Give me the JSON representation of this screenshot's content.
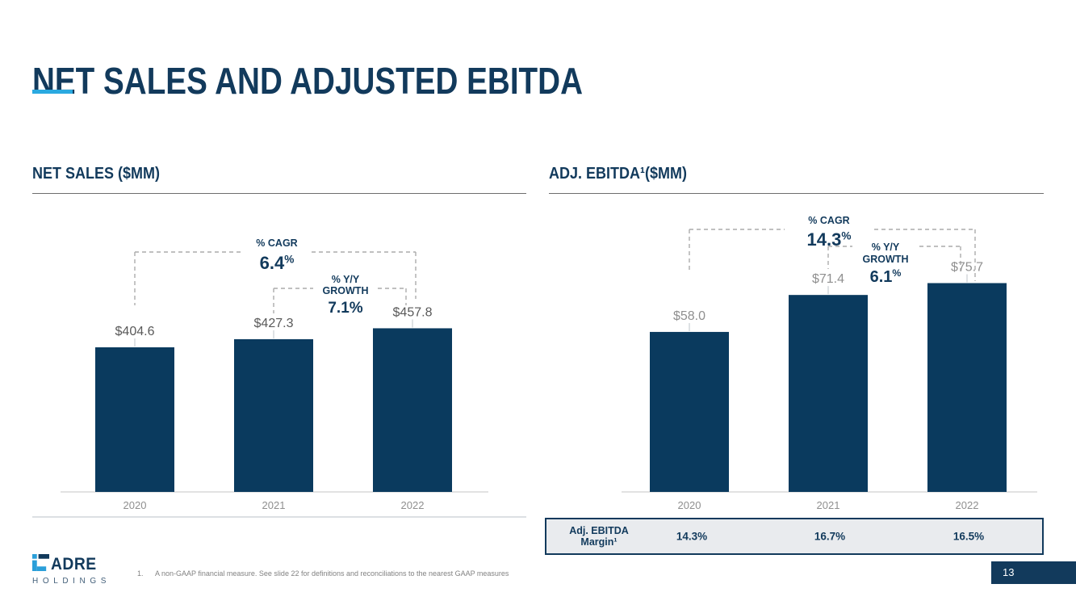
{
  "slide": {
    "title": "NET SALES AND ADJUSTED EBITDA",
    "page_number": "13",
    "footnote": {
      "index": "1.",
      "text": "A non-GAAP financial measure. See slide 22 for definitions and reconciliations to the nearest GAAP measures"
    },
    "logo": {
      "wordmark": "ADRE",
      "subtext": "HOLDINGS"
    },
    "colors": {
      "navy": "#123A5C",
      "accent_blue": "#2AA9E0",
      "bar_fill": "#0A3A5E",
      "dashed_line": "#ACACAC",
      "axis_line": "#D9D9D9"
    }
  },
  "panels": {
    "left": {
      "header": "NET SALES ($MM)"
    },
    "right": {
      "header": "ADJ. EBITDA¹($MM)"
    }
  },
  "margin_table": {
    "label_line1": "Adj. EBITDA",
    "label_line2": "Margin¹",
    "values": [
      "14.3%",
      "16.7%",
      "16.5%"
    ]
  },
  "chart_data": [
    {
      "type": "bar",
      "title": "NET SALES ($MM)",
      "categories": [
        "2020",
        "2021",
        "2022"
      ],
      "values": [
        404.6,
        427.3,
        457.8
      ],
      "value_labels": [
        "$404.6",
        "$427.3",
        "$457.8"
      ],
      "value_label_color": "#595959",
      "category_label_color": "#8F8F8F",
      "bar_color": "#0A3A5E",
      "ylim": [
        0,
        500
      ],
      "grid": false,
      "annotations": [
        {
          "kind": "cagr",
          "label_lines": [
            "% CAGR"
          ],
          "value": "6.4",
          "suffix": "%",
          "suffix_superscript": true,
          "from": "2020",
          "to": "2022"
        },
        {
          "kind": "yoy_growth",
          "label_lines": [
            "% Y/Y",
            "GROWTH"
          ],
          "value": "7.1%",
          "suffix": "",
          "suffix_superscript": false,
          "from": "2021",
          "to": "2022"
        }
      ]
    },
    {
      "type": "bar",
      "title": "ADJ. EBITDA¹($MM)",
      "categories": [
        "2020",
        "2021",
        "2022"
      ],
      "values": [
        58.0,
        71.4,
        75.7
      ],
      "value_labels": [
        "$58.0",
        "$71.4",
        "$75.7"
      ],
      "value_label_color": "#8F8F8F",
      "category_label_color": "#8F8F8F",
      "bar_color": "#0A3A5E",
      "ylim": [
        0,
        85
      ],
      "grid": false,
      "annotations": [
        {
          "kind": "cagr",
          "label_lines": [
            "% CAGR"
          ],
          "value": "14.3",
          "suffix": "%",
          "suffix_superscript": true,
          "from": "2020",
          "to": "2022"
        },
        {
          "kind": "yoy_growth",
          "label_lines": [
            "% Y/Y",
            "GROWTH"
          ],
          "value": "6.1",
          "suffix": "%",
          "suffix_superscript": true,
          "from": "2021",
          "to": "2022"
        }
      ]
    }
  ]
}
